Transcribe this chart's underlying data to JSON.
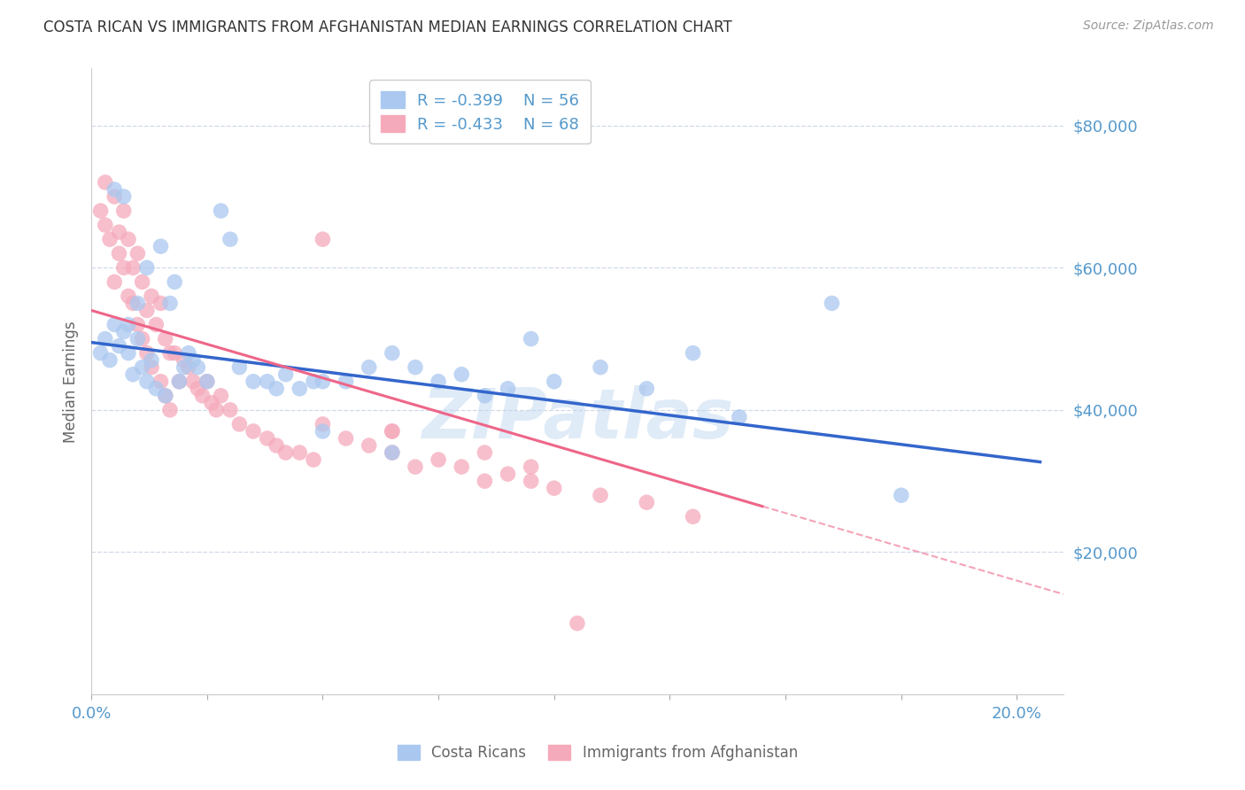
{
  "title": "COSTA RICAN VS IMMIGRANTS FROM AFGHANISTAN MEDIAN EARNINGS CORRELATION CHART",
  "source": "Source: ZipAtlas.com",
  "ylabel": "Median Earnings",
  "xlim": [
    0.0,
    0.21
  ],
  "ylim": [
    0,
    88000
  ],
  "yticks": [
    0,
    20000,
    40000,
    60000,
    80000
  ],
  "ytick_labels": [
    "",
    "$20,000",
    "$40,000",
    "$60,000",
    "$80,000"
  ],
  "xticks": [
    0.0,
    0.025,
    0.05,
    0.075,
    0.1,
    0.125,
    0.15,
    0.175,
    0.2
  ],
  "xtick_labels": [
    "0.0%",
    "",
    "",
    "",
    "",
    "",
    "",
    "",
    "20.0%"
  ],
  "background_color": "#ffffff",
  "grid_color": "#d0d8e8",
  "title_color": "#333333",
  "axis_label_color": "#666666",
  "tick_color": "#5599cc",
  "blue_scatter_color": "#aac8f0",
  "pink_scatter_color": "#f5aabb",
  "blue_line_color": "#3366cc",
  "pink_line_color": "#ee6688",
  "watermark_color": "#c0d8f0",
  "watermark_text": "ZIPatlas",
  "blue_R": -0.399,
  "blue_N": 56,
  "pink_R": -0.433,
  "pink_N": 68,
  "blue_intercept": 49500,
  "blue_slope": -82000,
  "pink_intercept": 54000,
  "pink_slope": -190000,
  "pink_line_end_x": 0.145,
  "blue_x": [
    0.002,
    0.003,
    0.004,
    0.005,
    0.006,
    0.007,
    0.008,
    0.009,
    0.01,
    0.011,
    0.012,
    0.013,
    0.014,
    0.015,
    0.016,
    0.017,
    0.018,
    0.019,
    0.02,
    0.021,
    0.022,
    0.023,
    0.025,
    0.028,
    0.03,
    0.032,
    0.035,
    0.038,
    0.04,
    0.042,
    0.045,
    0.048,
    0.05,
    0.055,
    0.06,
    0.065,
    0.07,
    0.075,
    0.08,
    0.085,
    0.09,
    0.095,
    0.1,
    0.11,
    0.12,
    0.13,
    0.14,
    0.16,
    0.175,
    0.008,
    0.01,
    0.012,
    0.005,
    0.007,
    0.05,
    0.065
  ],
  "blue_y": [
    48000,
    50000,
    47000,
    52000,
    49000,
    51000,
    48000,
    45000,
    50000,
    46000,
    44000,
    47000,
    43000,
    63000,
    42000,
    55000,
    58000,
    44000,
    46000,
    48000,
    47000,
    46000,
    44000,
    68000,
    64000,
    46000,
    44000,
    44000,
    43000,
    45000,
    43000,
    44000,
    44000,
    44000,
    46000,
    48000,
    46000,
    44000,
    45000,
    42000,
    43000,
    50000,
    44000,
    46000,
    43000,
    48000,
    39000,
    55000,
    28000,
    52000,
    55000,
    60000,
    71000,
    70000,
    37000,
    34000
  ],
  "pink_x": [
    0.002,
    0.003,
    0.003,
    0.004,
    0.005,
    0.005,
    0.006,
    0.006,
    0.007,
    0.007,
    0.008,
    0.008,
    0.009,
    0.009,
    0.01,
    0.01,
    0.011,
    0.011,
    0.012,
    0.012,
    0.013,
    0.013,
    0.014,
    0.015,
    0.015,
    0.016,
    0.016,
    0.017,
    0.017,
    0.018,
    0.019,
    0.02,
    0.021,
    0.022,
    0.023,
    0.024,
    0.025,
    0.026,
    0.027,
    0.028,
    0.03,
    0.032,
    0.035,
    0.038,
    0.04,
    0.042,
    0.045,
    0.048,
    0.05,
    0.055,
    0.06,
    0.065,
    0.07,
    0.075,
    0.08,
    0.085,
    0.09,
    0.095,
    0.1,
    0.11,
    0.12,
    0.13,
    0.05,
    0.065,
    0.085,
    0.095,
    0.105,
    0.065
  ],
  "pink_y": [
    68000,
    66000,
    72000,
    64000,
    70000,
    58000,
    65000,
    62000,
    68000,
    60000,
    64000,
    56000,
    60000,
    55000,
    62000,
    52000,
    58000,
    50000,
    54000,
    48000,
    56000,
    46000,
    52000,
    55000,
    44000,
    50000,
    42000,
    48000,
    40000,
    48000,
    44000,
    47000,
    46000,
    44000,
    43000,
    42000,
    44000,
    41000,
    40000,
    42000,
    40000,
    38000,
    37000,
    36000,
    35000,
    34000,
    34000,
    33000,
    38000,
    36000,
    35000,
    34000,
    32000,
    33000,
    32000,
    30000,
    31000,
    30000,
    29000,
    28000,
    27000,
    25000,
    64000,
    37000,
    34000,
    32000,
    10000,
    37000
  ]
}
